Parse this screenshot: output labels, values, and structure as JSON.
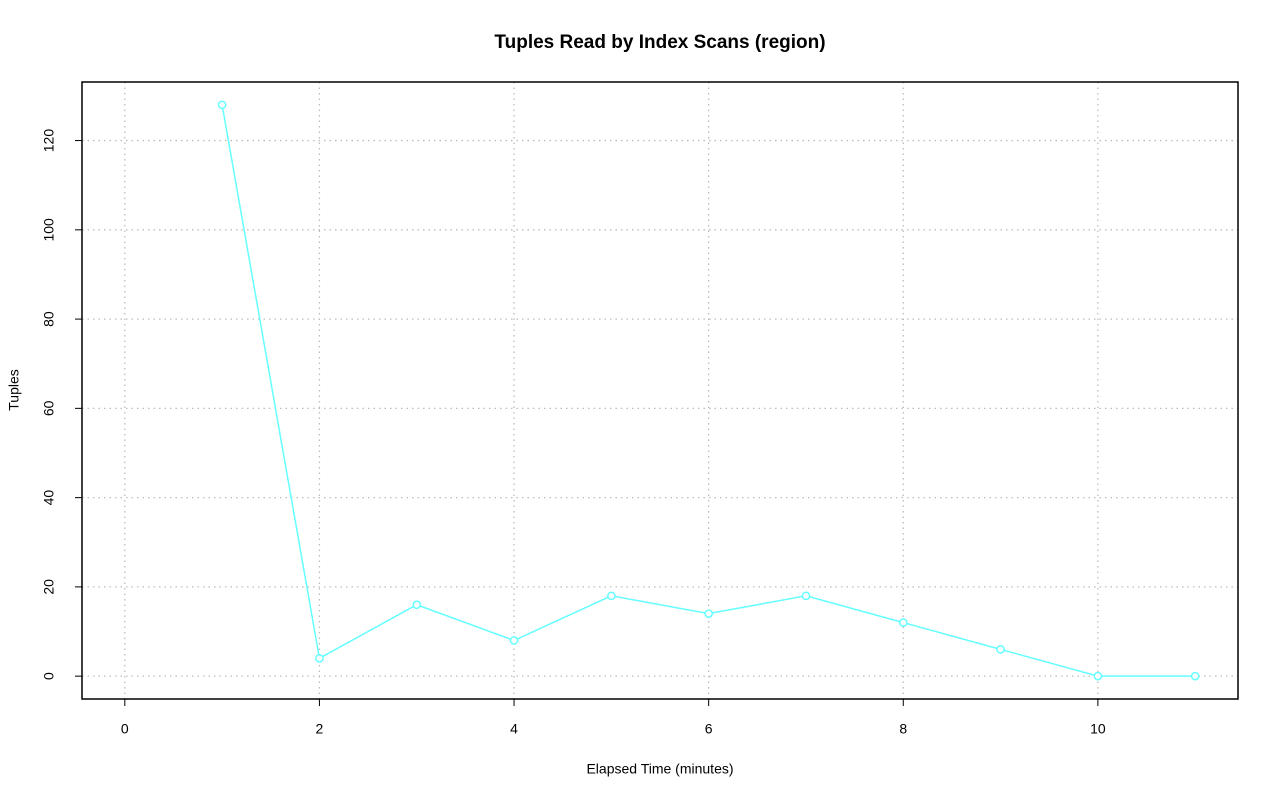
{
  "chart_data": {
    "type": "line",
    "title": "Tuples Read by Index Scans (region)",
    "x_label": "Elapsed Time (minutes)",
    "y_label": "Tuples",
    "x": [
      1,
      2,
      3,
      4,
      5,
      6,
      7,
      8,
      9,
      10,
      11
    ],
    "series": [
      {
        "name": "region",
        "color": "#66ffff",
        "values": [
          128,
          4,
          16,
          8,
          18,
          14,
          18,
          12,
          6,
          0,
          0
        ]
      }
    ],
    "xlim": [
      -0.44,
      11.44
    ],
    "xticks": [
      0,
      2,
      4,
      6,
      8,
      10
    ],
    "ylim": [
      -5.12,
      133.12
    ],
    "yticks": [
      0,
      20,
      40,
      60,
      80,
      100,
      120
    ],
    "grid": true
  }
}
